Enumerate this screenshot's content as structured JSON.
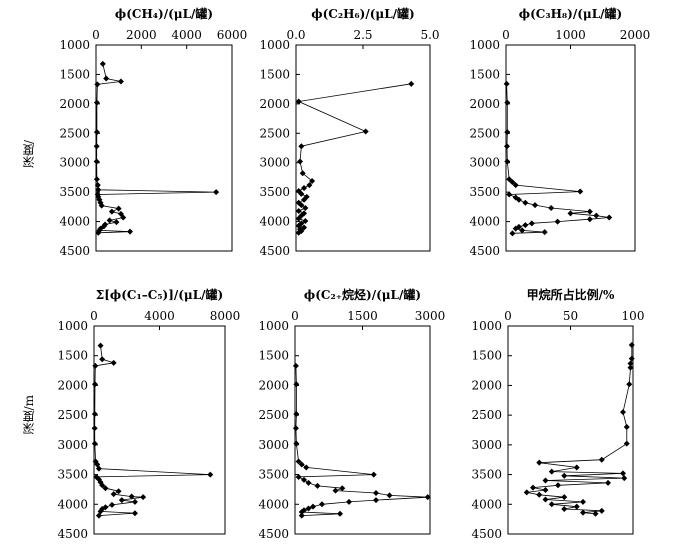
{
  "y_axis_labels": [
    "深度/",
    "深度/m"
  ],
  "chart_data": [
    {
      "type": "line",
      "title": "ϕ(CH₄)/(μL/罐)",
      "xlim": [
        0,
        6000
      ],
      "xticks": [
        0,
        2000,
        4000,
        6000
      ],
      "ylim": [
        1000,
        4500
      ],
      "yticks": [
        1000,
        1500,
        2000,
        2500,
        3000,
        3500,
        4000,
        4500
      ],
      "y_reversed": true,
      "series": [
        {
          "x": [
            300,
            450,
            1100,
            60,
            40,
            40,
            30,
            30,
            40,
            80,
            100,
            5300,
            80,
            100,
            150,
            200,
            250,
            1000,
            700,
            1100,
            1200,
            600,
            900,
            400,
            350,
            200,
            150,
            1500,
            100
          ],
          "y": [
            1320,
            1570,
            1620,
            1670,
            1980,
            2480,
            2720,
            2980,
            3280,
            3380,
            3460,
            3500,
            3540,
            3580,
            3630,
            3680,
            3730,
            3780,
            3830,
            3870,
            3930,
            3980,
            4010,
            4050,
            4080,
            4120,
            4150,
            4170,
            4190
          ]
        }
      ]
    },
    {
      "type": "line",
      "title": "ϕ(C₂H₆)/(μL/罐)",
      "xlim": [
        0,
        5.0
      ],
      "xticks": [
        "0.0",
        "2.5",
        "5.0"
      ],
      "ylim": [
        1000,
        4500
      ],
      "yticks": [
        1000,
        1500,
        2000,
        2500,
        3000,
        3500,
        4000,
        4500
      ],
      "y_reversed": true,
      "series": [
        {
          "x": [
            4.3,
            0.1,
            2.6,
            0.2,
            0.15,
            0.25,
            0.6,
            0.5,
            0.3,
            0.1,
            0.2,
            0.4,
            0.3,
            0.1,
            0.2,
            0.35,
            0.1,
            0.3,
            0.2,
            0.1,
            0.35,
            0.2,
            0.1,
            0.3,
            0.15,
            0.2,
            0.1
          ],
          "y": [
            1660,
            1960,
            2470,
            2720,
            2980,
            3180,
            3310,
            3380,
            3430,
            3480,
            3530,
            3580,
            3630,
            3680,
            3720,
            3770,
            3820,
            3860,
            3900,
            3950,
            3990,
            4030,
            4070,
            4100,
            4130,
            4160,
            4190
          ]
        }
      ]
    },
    {
      "type": "line",
      "title": "ϕ(C₃H₈)/(μL/罐)",
      "xlim": [
        0,
        2000
      ],
      "xticks": [
        0,
        1000,
        2000
      ],
      "ylim": [
        1000,
        4500
      ],
      "yticks": [
        1000,
        1500,
        2000,
        2500,
        3000,
        3500,
        4000,
        4500
      ],
      "y_reversed": true,
      "series": [
        {
          "x": [
            10,
            20,
            20,
            15,
            20,
            50,
            100,
            150,
            1150,
            50,
            150,
            200,
            300,
            450,
            700,
            1300,
            1000,
            1400,
            1600,
            1300,
            800,
            400,
            300,
            200,
            150,
            250,
            600,
            100
          ],
          "y": [
            1660,
            1980,
            2480,
            2720,
            2980,
            3280,
            3330,
            3380,
            3490,
            3540,
            3590,
            3630,
            3680,
            3720,
            3770,
            3830,
            3860,
            3900,
            3930,
            3960,
            4000,
            4030,
            4060,
            4090,
            4120,
            4150,
            4180,
            4200
          ]
        }
      ]
    },
    {
      "type": "line",
      "title": "Σ[ϕ(C₁–C₅)]/(μL/罐)",
      "xlim": [
        0,
        8000
      ],
      "xticks": [
        0,
        4000,
        8000
      ],
      "ylim": [
        1000,
        4500
      ],
      "yticks": [
        1000,
        1500,
        2000,
        2500,
        3000,
        3500,
        4000,
        4500
      ],
      "y_reversed": true,
      "series": [
        {
          "x": [
            400,
            500,
            1200,
            80,
            60,
            50,
            40,
            50,
            100,
            200,
            300,
            7100,
            150,
            300,
            400,
            500,
            700,
            1500,
            1200,
            2300,
            3000,
            1700,
            2500,
            1100,
            700,
            500,
            400,
            2500,
            300
          ],
          "y": [
            1330,
            1560,
            1620,
            1670,
            1980,
            2480,
            2720,
            2980,
            3280,
            3330,
            3400,
            3500,
            3540,
            3580,
            3630,
            3680,
            3730,
            3780,
            3830,
            3870,
            3880,
            3930,
            3960,
            4010,
            4050,
            4080,
            4120,
            4150,
            4190
          ]
        }
      ]
    },
    {
      "type": "line",
      "title": "ϕ(C₂₊烷烃)/(μL/罐)",
      "xlim": [
        0,
        3000
      ],
      "xticks": [
        0,
        1500,
        3000
      ],
      "ylim": [
        1000,
        4500
      ],
      "yticks": [
        1000,
        1500,
        2000,
        2500,
        3000,
        3500,
        4000,
        4500
      ],
      "y_reversed": true,
      "series": [
        {
          "x": [
            20,
            30,
            30,
            20,
            30,
            80,
            150,
            250,
            1750,
            80,
            200,
            300,
            500,
            1050,
            900,
            1800,
            2100,
            2950,
            1800,
            1200,
            600,
            400,
            300,
            200,
            150,
            1000,
            150
          ],
          "y": [
            1670,
            1980,
            2480,
            2720,
            2980,
            3280,
            3330,
            3380,
            3500,
            3540,
            3590,
            3640,
            3690,
            3730,
            3770,
            3810,
            3850,
            3880,
            3930,
            3960,
            4000,
            4040,
            4070,
            4100,
            4130,
            4160,
            4190
          ]
        }
      ]
    },
    {
      "type": "line",
      "title": "甲烷所占比例/%",
      "xlim": [
        0,
        100
      ],
      "xticks": [
        0,
        50,
        100
      ],
      "ylim": [
        1000,
        4500
      ],
      "yticks": [
        1000,
        1500,
        2000,
        2500,
        3000,
        3500,
        4000,
        4500
      ],
      "y_reversed": true,
      "series": [
        {
          "x": [
            99,
            99,
            98,
            98,
            97,
            92,
            95,
            95,
            75,
            25,
            55,
            35,
            92,
            45,
            93,
            30,
            80,
            40,
            20,
            30,
            15,
            25,
            45,
            30,
            60,
            35,
            55,
            45,
            75,
            60,
            70
          ],
          "y": [
            1320,
            1550,
            1630,
            1700,
            1980,
            2450,
            2700,
            2980,
            3250,
            3300,
            3380,
            3450,
            3480,
            3520,
            3560,
            3600,
            3640,
            3680,
            3720,
            3760,
            3800,
            3840,
            3880,
            3920,
            3960,
            4000,
            4040,
            4080,
            4110,
            4140,
            4160
          ]
        }
      ]
    }
  ]
}
